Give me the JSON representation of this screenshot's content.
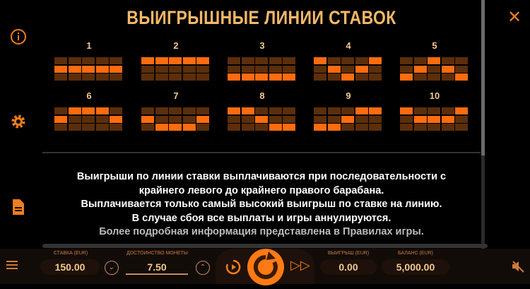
{
  "title": "ВЫИГРЫШНЫЕ ЛИНИИ СТАВОК",
  "accent": "#ff6b0f",
  "paylines": [
    {
      "num": "1",
      "rows": [
        1,
        1,
        1,
        1,
        1
      ]
    },
    {
      "num": "2",
      "rows": [
        0,
        0,
        0,
        0,
        0
      ]
    },
    {
      "num": "3",
      "rows": [
        2,
        2,
        2,
        2,
        2
      ]
    },
    {
      "num": "4",
      "rows": [
        0,
        1,
        2,
        1,
        0
      ]
    },
    {
      "num": "5",
      "rows": [
        2,
        1,
        0,
        1,
        2
      ]
    },
    {
      "num": "6",
      "rows": [
        1,
        0,
        0,
        0,
        1
      ]
    },
    {
      "num": "7",
      "rows": [
        1,
        2,
        2,
        2,
        1
      ]
    },
    {
      "num": "8",
      "rows": [
        0,
        0,
        1,
        2,
        2
      ]
    },
    {
      "num": "9",
      "rows": [
        2,
        2,
        1,
        0,
        0
      ]
    },
    {
      "num": "10",
      "rows": [
        0,
        1,
        1,
        1,
        0
      ]
    }
  ],
  "info": [
    "Выигрыши по линии ставки выплачиваются при последовательности с",
    "крайнего левого до крайнего правого барабана.",
    "Выплачивается только самый высокий выигрыш по ставке на линию.",
    "В случае сбоя все выплаты и игры аннулируются.",
    "Более подробная информация представлена в Правилах игры."
  ],
  "icons": {
    "close": "close-icon",
    "info": "info-icon",
    "settings": "gear-icon",
    "rules": "document-icon",
    "menu": "hamburger-icon",
    "sound": "sound-muted-icon"
  },
  "bottom": {
    "bet_label": "СТАВКА (EUR)",
    "bet": "150.00",
    "coin_label": "ДОСТОИНСТВО МОНЕТЫ",
    "coin": "7.50",
    "win_label": "ВЫИГРЫШ (EUR)",
    "win": "0.00",
    "balance_label": "БАЛАНС (EUR)",
    "balance": "5,000.00"
  }
}
